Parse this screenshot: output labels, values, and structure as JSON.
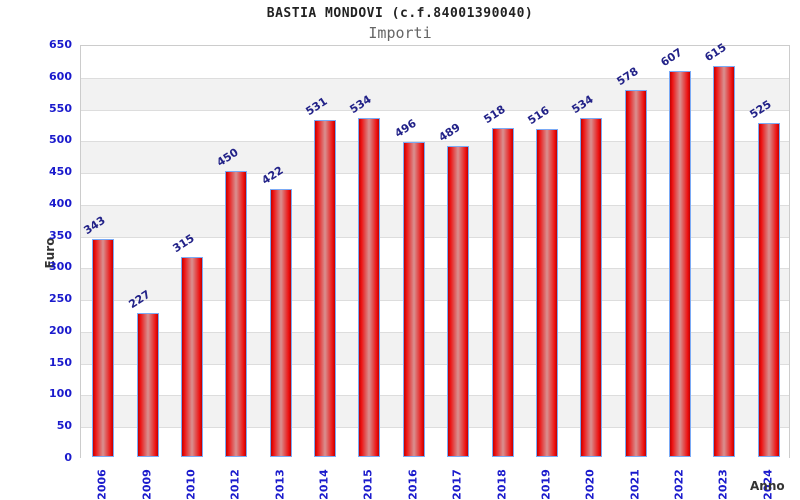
{
  "chart_data": {
    "type": "bar",
    "title": "BASTIA MONDOVI (c.f.84001390040)",
    "subtitle": "Importi",
    "xlabel": "Anno",
    "ylabel": "Euro",
    "categories": [
      "2006",
      "2009",
      "2010",
      "2012",
      "2013",
      "2014",
      "2015",
      "2016",
      "2017",
      "2018",
      "2019",
      "2020",
      "2021",
      "2022",
      "2023",
      "2024"
    ],
    "values": [
      343,
      227,
      315,
      450,
      422,
      531,
      534,
      496,
      489,
      518,
      516,
      534,
      578,
      607,
      615,
      525
    ],
    "ylim": [
      0,
      650
    ],
    "ytick_step": 50,
    "grid": "horizontal-bands-alternating",
    "legend": "none",
    "colors": {
      "bar_edge_red": "#c00000",
      "bar_center": "#d99090",
      "bar_border": "#7aaaf5",
      "tick_label_blue": "#1a1acc",
      "value_label_navy": "#222288",
      "band_gray": "#f2f2f2",
      "gridline": "#dddddd",
      "plot_border": "#cccccc",
      "title_color": "#222222",
      "subtitle_color": "#666666",
      "axis_title_color": "#333333"
    }
  }
}
